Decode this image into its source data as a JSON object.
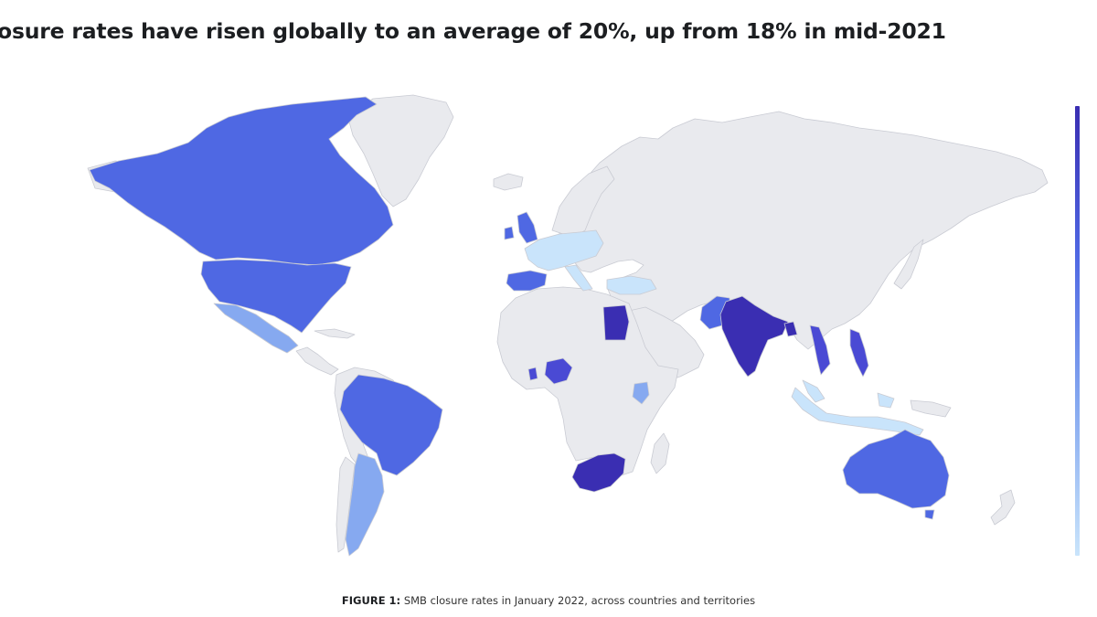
{
  "headline": "osure rates have risen globally to an average of 20%, up from 18% in mid-2021",
  "figure": {
    "label": "FIGURE 1:",
    "text": "SMB closure rates in January 2022, across countries and territories"
  },
  "colors": {
    "background": "#ffffff",
    "no_data": "#e9eaee",
    "border": "#c7c9d1",
    "scale_low": "#c9e4fb",
    "scale_mid_low": "#86a9f0",
    "scale_mid": "#4f68e3",
    "scale_high": "#4a4ad4",
    "scale_max": "#3a2eb2"
  },
  "legend": {
    "orientation": "vertical",
    "position": "right",
    "gradient": [
      "#3a2eb2",
      "#4f68e3",
      "#86a9f0",
      "#c9e4fb"
    ]
  },
  "map": {
    "projection": "world",
    "highlighted_regions": [
      {
        "name": "Canada",
        "shade": "scale_mid"
      },
      {
        "name": "United States",
        "shade": "scale_mid"
      },
      {
        "name": "Mexico",
        "shade": "scale_mid_low"
      },
      {
        "name": "Brazil",
        "shade": "scale_mid"
      },
      {
        "name": "Argentina",
        "shade": "scale_mid_low"
      },
      {
        "name": "United Kingdom",
        "shade": "scale_mid"
      },
      {
        "name": "Ireland",
        "shade": "scale_mid"
      },
      {
        "name": "Spain",
        "shade": "scale_mid"
      },
      {
        "name": "Portugal",
        "shade": "scale_mid"
      },
      {
        "name": "France",
        "shade": "scale_low"
      },
      {
        "name": "Germany",
        "shade": "scale_low"
      },
      {
        "name": "Italy",
        "shade": "scale_low"
      },
      {
        "name": "Turkey",
        "shade": "scale_low"
      },
      {
        "name": "Egypt",
        "shade": "scale_max"
      },
      {
        "name": "Nigeria",
        "shade": "scale_high"
      },
      {
        "name": "Ghana",
        "shade": "scale_high"
      },
      {
        "name": "Kenya",
        "shade": "scale_mid_low"
      },
      {
        "name": "South Africa",
        "shade": "scale_max"
      },
      {
        "name": "Pakistan",
        "shade": "scale_mid"
      },
      {
        "name": "India",
        "shade": "scale_max"
      },
      {
        "name": "Bangladesh",
        "shade": "scale_max"
      },
      {
        "name": "Vietnam",
        "shade": "scale_high"
      },
      {
        "name": "Philippines",
        "shade": "scale_high"
      },
      {
        "name": "Malaysia",
        "shade": "scale_low"
      },
      {
        "name": "Indonesia",
        "shade": "scale_low"
      },
      {
        "name": "Australia",
        "shade": "scale_mid"
      }
    ]
  }
}
